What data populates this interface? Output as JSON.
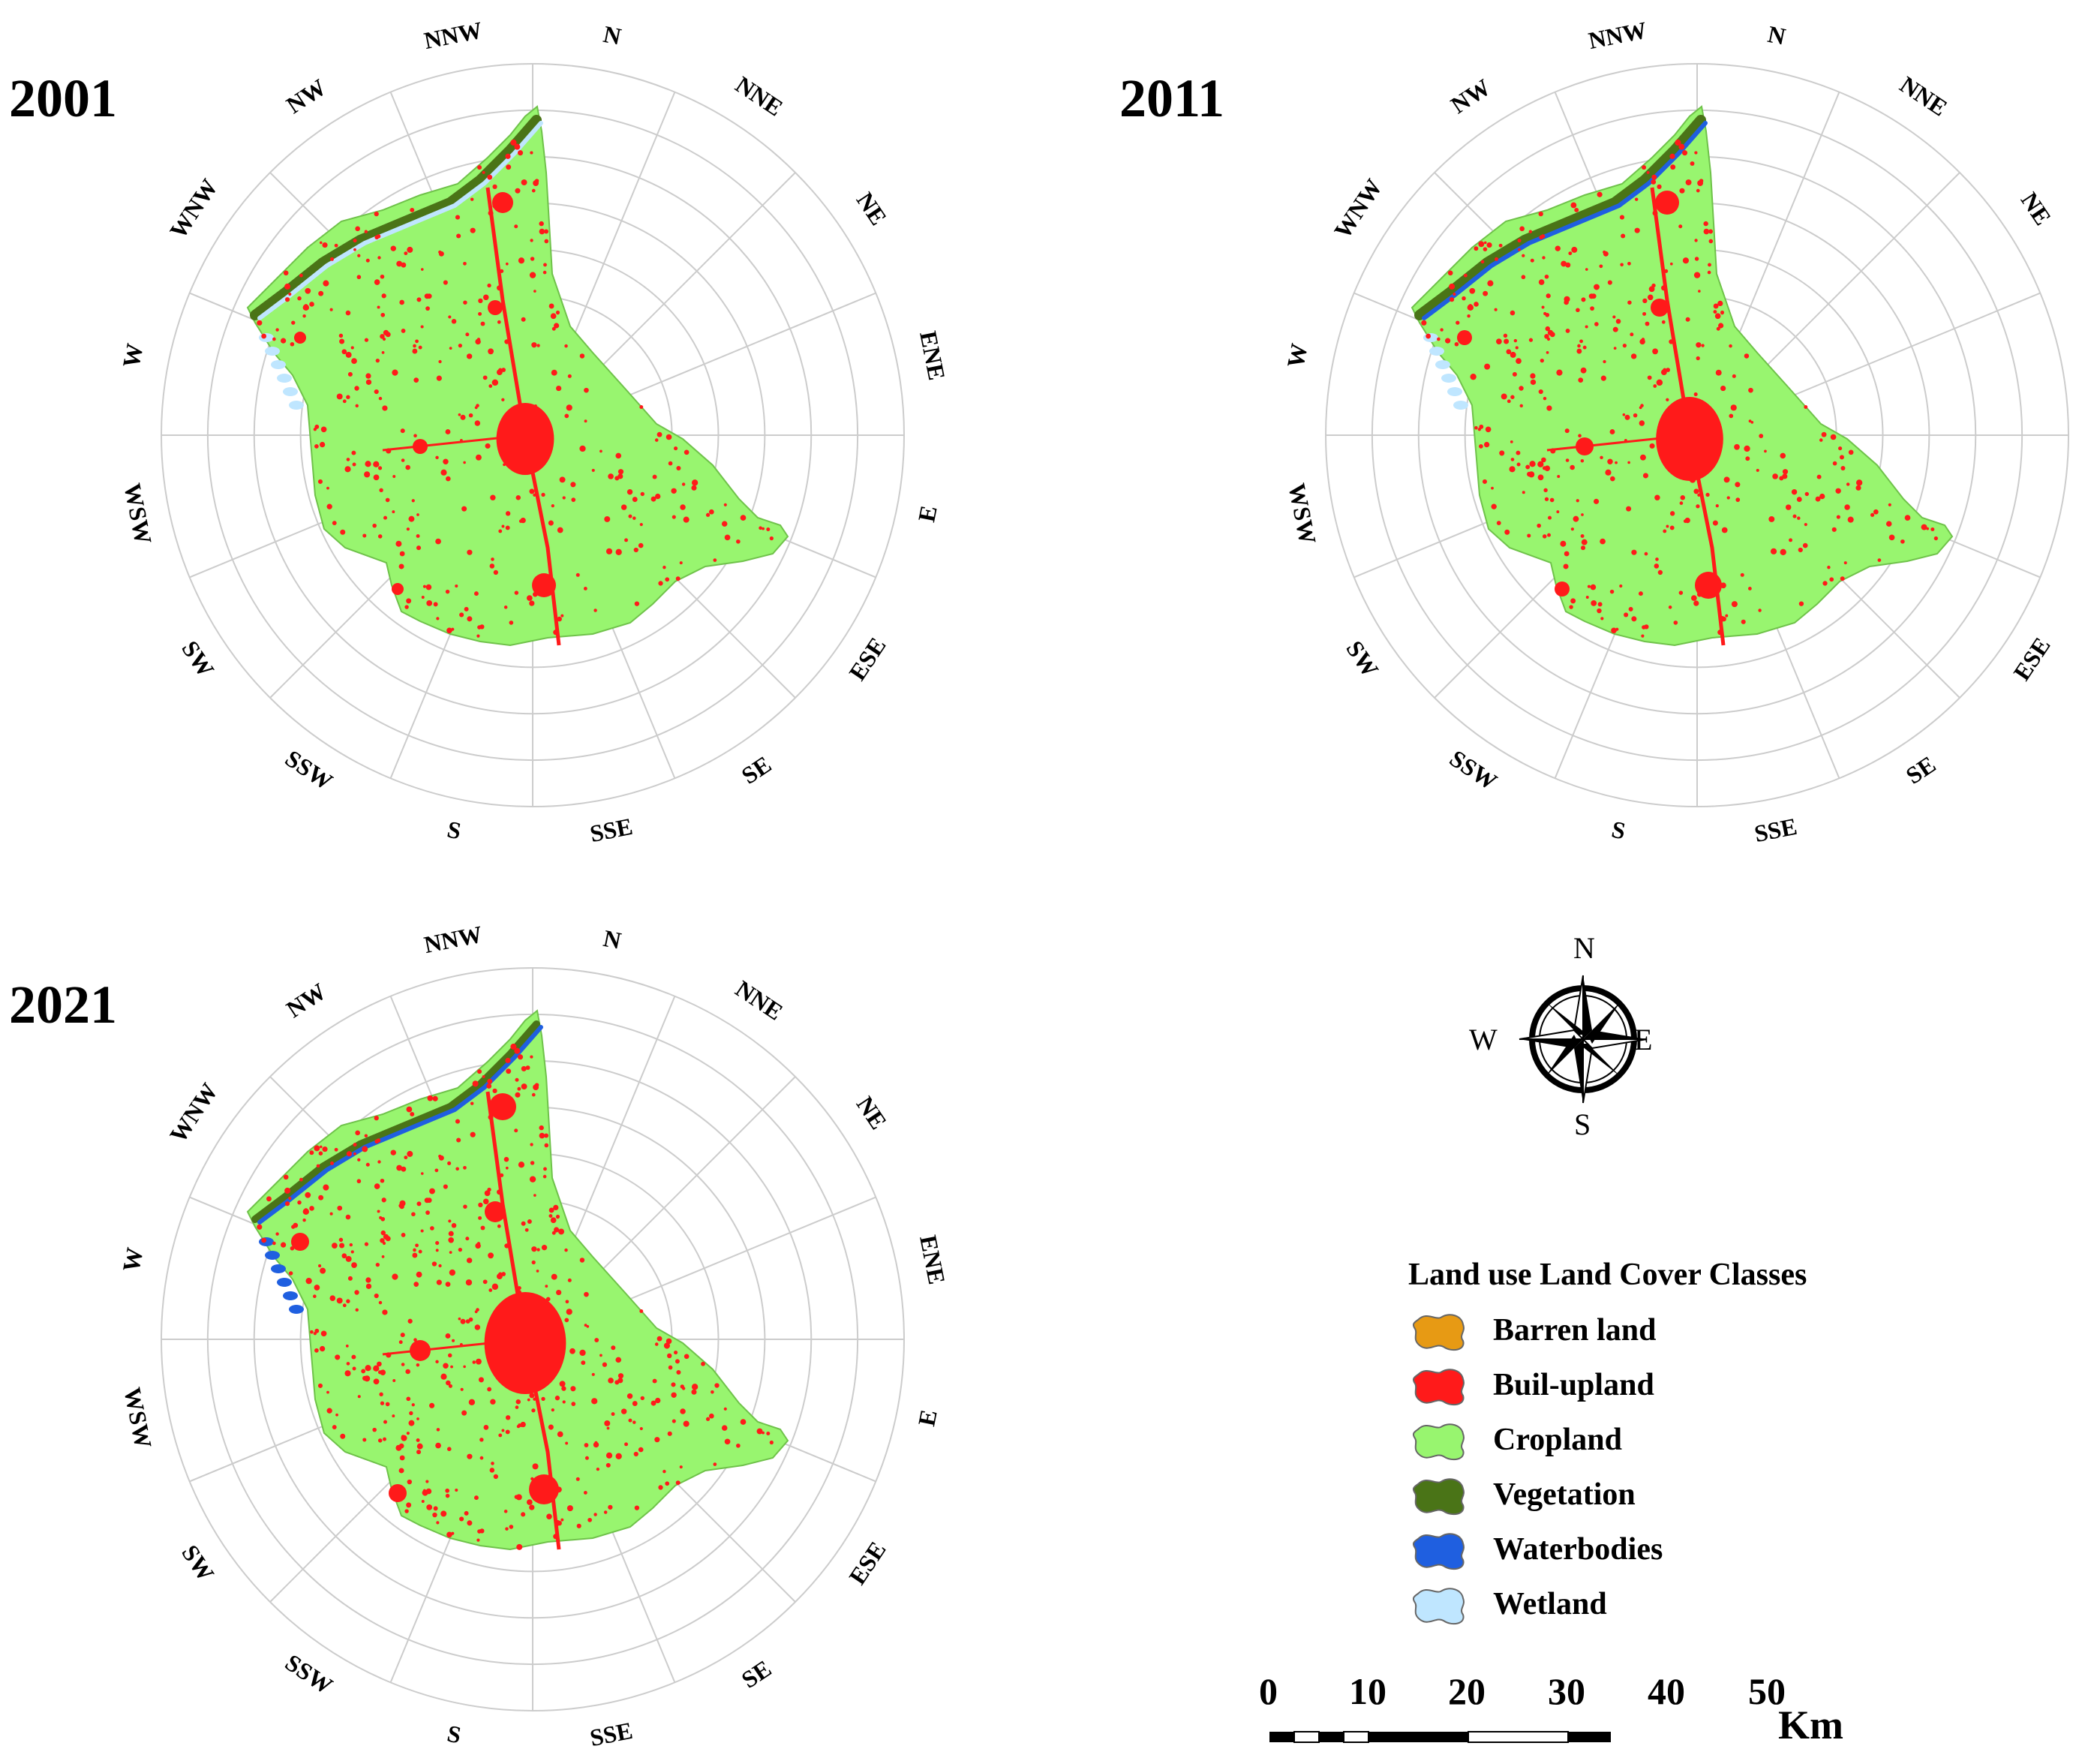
{
  "maps": [
    {
      "year": "2001"
    },
    {
      "year": "2011"
    },
    {
      "year": "2021"
    }
  ],
  "directions": [
    "N",
    "NNE",
    "NE",
    "ENE",
    "E",
    "ESE",
    "SE",
    "SSE",
    "S",
    "SSW",
    "SW",
    "WSW",
    "W",
    "WNW",
    "NW",
    "NNW"
  ],
  "compass": {
    "n": "N",
    "e": "E",
    "s": "S",
    "w": "W"
  },
  "legend": {
    "title": "Land use Land Cover Classes",
    "items": [
      {
        "label": "Barren land",
        "color": "#e79a14"
      },
      {
        "label": "Buil-upland",
        "color": "#ff1a1a"
      },
      {
        "label": "Cropland",
        "color": "#98f56f"
      },
      {
        "label": "Vegetation",
        "color": "#4a7417"
      },
      {
        "label": "Waterbodies",
        "color": "#1f5fe0"
      },
      {
        "label": "Wetland",
        "color": "#bfe6ff"
      }
    ]
  },
  "scale_bar": {
    "ticks": [
      "0",
      "10",
      "20",
      "30",
      "40",
      "50"
    ],
    "unit": "Km"
  },
  "colors": {
    "cropland": "#98f56f",
    "builtup": "#ff1a1a",
    "vegetation": "#4a7417",
    "water": "#1f5fe0",
    "wetland": "#bfe6ff",
    "grid": "#cccccc"
  }
}
